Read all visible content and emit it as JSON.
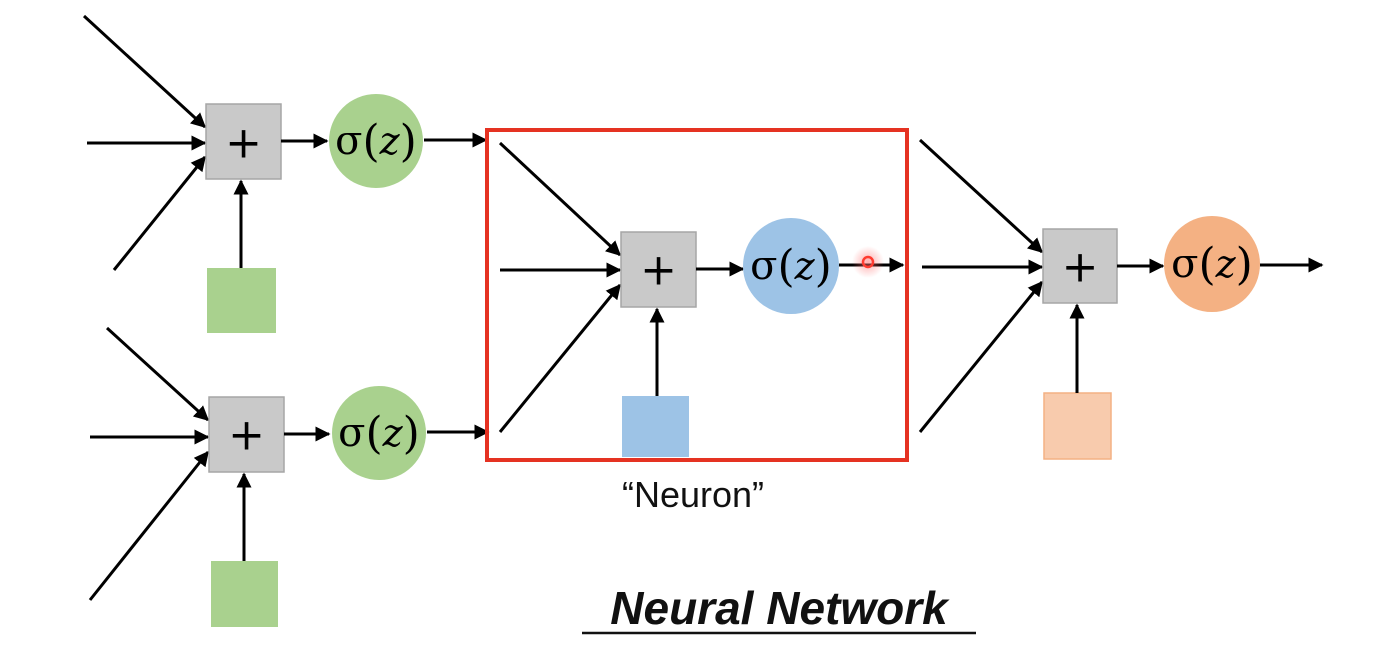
{
  "diagram": {
    "adder_symbol": "+",
    "activation_symbol": "σ",
    "activation_arg": "z",
    "neuron_caption": "“Neuron”",
    "title": "Neural Network"
  },
  "colors": {
    "adder_fill": "#c9c9c9",
    "adder_stroke": "#a6a6a6",
    "hidden_activation": "#a9d18e",
    "hidden_bias": "#a9d18e",
    "neuron_activation": "#9dc3e6",
    "neuron_bias": "#9dc3e6",
    "output_activation": "#f4b183",
    "output_bias": "#f8cbad",
    "highlight_box": "#e53222",
    "arrow": "#000000",
    "cursor_dot": "#ff3b30"
  },
  "nodes": [
    {
      "id": "hidden-1",
      "color_key": "hidden"
    },
    {
      "id": "hidden-2",
      "color_key": "hidden"
    },
    {
      "id": "neuron",
      "color_key": "neuron"
    },
    {
      "id": "output",
      "color_key": "output"
    }
  ]
}
